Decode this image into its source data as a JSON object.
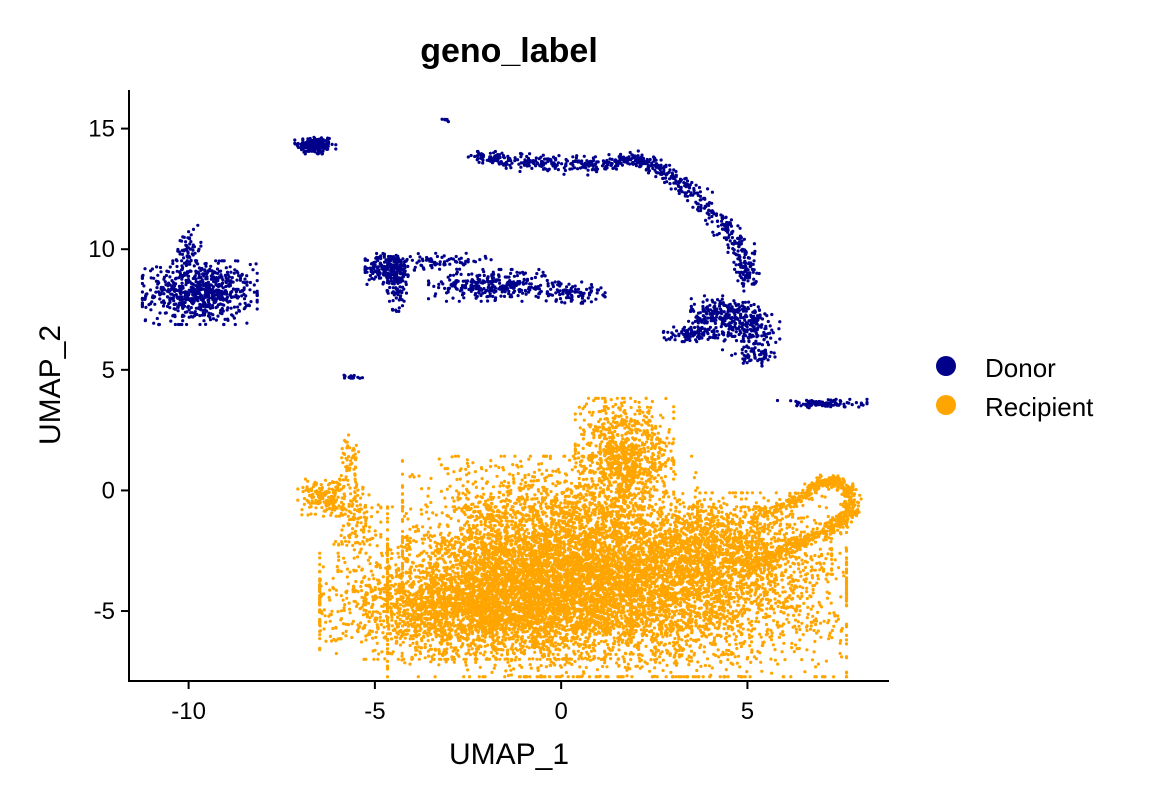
{
  "chart_data": {
    "type": "scatter",
    "title": "geno_label",
    "xlabel": "UMAP_1",
    "ylabel": "UMAP_2",
    "xlim": [
      -11.6,
      8.8
    ],
    "ylim": [
      -7.9,
      16.6
    ],
    "xticks": [
      -10,
      -5,
      0,
      5
    ],
    "yticks": [
      -5,
      0,
      5,
      10,
      15
    ],
    "grid": false,
    "legend_position": "right",
    "series": [
      {
        "name": "Donor",
        "color": "#00008B",
        "clusters": [
          {
            "center": [
              -6.6,
              14.3
            ],
            "spread": [
              0.25,
              0.2
            ],
            "n": 160
          },
          {
            "center": [
              -9.7,
              8.2
            ],
            "spread": [
              0.7,
              0.6
            ],
            "n": 700
          },
          {
            "center": [
              -10.0,
              10.0
            ],
            "spread": [
              0.15,
              0.45
            ],
            "n": 60
          },
          {
            "center": [
              -4.6,
              9.2
            ],
            "spread": [
              0.3,
              0.3
            ],
            "n": 260
          },
          {
            "center": [
              -4.4,
              8.3
            ],
            "spread": [
              0.15,
              0.4
            ],
            "n": 60
          },
          {
            "center": [
              -3.2,
              9.5
            ],
            "spread": [
              0.6,
              0.15
            ],
            "n": 80
          },
          {
            "center": [
              -1.8,
              8.5
            ],
            "spread": [
              0.8,
              0.3
            ],
            "n": 320
          },
          {
            "center": [
              0.3,
              8.2
            ],
            "spread": [
              0.4,
              0.2
            ],
            "n": 90
          },
          {
            "center": [
              -3.1,
              15.4
            ],
            "spread": [
              0.05,
              0.05
            ],
            "n": 6
          },
          {
            "center": [
              -5.6,
              4.7
            ],
            "spread": [
              0.15,
              0.05
            ],
            "n": 18
          },
          {
            "center": [
              4.3,
              7.3
            ],
            "spread": [
              0.4,
              0.35
            ],
            "n": 220
          },
          {
            "center": [
              3.6,
              6.5
            ],
            "spread": [
              0.45,
              0.15
            ],
            "n": 110
          },
          {
            "center": [
              5.1,
              6.7
            ],
            "spread": [
              0.35,
              0.5
            ],
            "n": 180
          },
          {
            "center": [
              5.3,
              5.6
            ],
            "spread": [
              0.2,
              0.2
            ],
            "n": 50
          },
          {
            "center": [
              7.0,
              3.6
            ],
            "spread": [
              0.55,
              0.08
            ],
            "n": 110
          }
        ],
        "path": [
          [
            -2.4,
            13.9
          ],
          [
            -1.2,
            13.6
          ],
          [
            0.0,
            13.6
          ],
          [
            1.2,
            13.5
          ],
          [
            2.0,
            13.8
          ],
          [
            2.8,
            13.2
          ],
          [
            3.6,
            12.2
          ],
          [
            4.4,
            11.0
          ],
          [
            4.9,
            9.8
          ],
          [
            5.0,
            8.6
          ]
        ],
        "path_n": 700,
        "path_spread": 0.15
      },
      {
        "name": "Recipient",
        "color": "#FFA500",
        "clusters": [
          {
            "center": [
              1.5,
              -4.2
            ],
            "spread": [
              2.8,
              1.6
            ],
            "n": 5200
          },
          {
            "center": [
              -2.3,
              -4.8
            ],
            "spread": [
              1.9,
              1.0
            ],
            "n": 2600
          },
          {
            "center": [
              -0.3,
              -2.1
            ],
            "spread": [
              1.8,
              1.6
            ],
            "n": 2400
          },
          {
            "center": [
              1.7,
              1.4
            ],
            "spread": [
              0.6,
              1.1
            ],
            "n": 900
          },
          {
            "center": [
              4.4,
              -2.3
            ],
            "spread": [
              1.3,
              1.0
            ],
            "n": 1100
          },
          {
            "center": [
              -6.3,
              -0.3
            ],
            "spread": [
              0.35,
              0.35
            ],
            "n": 180
          },
          {
            "center": [
              -5.5,
              -1.4
            ],
            "spread": [
              0.3,
              0.8
            ],
            "n": 140
          },
          {
            "center": [
              -5.7,
              1.2
            ],
            "spread": [
              0.12,
              0.5
            ],
            "n": 50
          }
        ],
        "path": [
          [
            5.2,
            -1.2
          ],
          [
            6.4,
            -0.3
          ],
          [
            7.2,
            0.5
          ],
          [
            7.7,
            0.0
          ],
          [
            7.8,
            -0.9
          ],
          [
            7.2,
            -1.6
          ],
          [
            6.1,
            -2.4
          ],
          [
            5.0,
            -3.3
          ]
        ],
        "path_n": 650,
        "path_spread": 0.12
      }
    ]
  }
}
